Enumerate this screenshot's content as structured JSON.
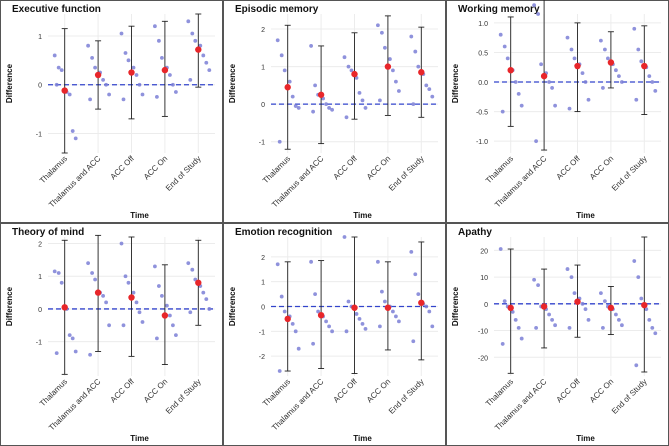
{
  "figure": {
    "categories": [
      "Thalamus",
      "Thalamus and ACC",
      "ACC Off",
      "ACC On",
      "End of Study"
    ],
    "xlabel": "Time",
    "ylabel": "Difference",
    "colors": {
      "points": "#7b7fd6",
      "mean": "#e8262a",
      "errorbar": "#222222",
      "reference": "#3344cc",
      "grid": "#ececec",
      "frame": "#555555"
    }
  },
  "chart_data": [
    {
      "type": "scatter",
      "title": "Executive function",
      "ylim": [
        -1.4,
        1.45
      ],
      "yticks": [
        -1,
        0,
        1
      ],
      "ytick_labels": [
        "-1",
        "0",
        "1"
      ],
      "means": [
        -0.12,
        0.2,
        0.25,
        0.3,
        0.72
      ],
      "err_low": [
        -1.4,
        -0.5,
        -0.7,
        -0.65,
        -0.05
      ],
      "err_high": [
        1.15,
        0.9,
        1.2,
        1.3,
        1.45
      ],
      "points": [
        [
          0.6,
          0.35,
          0.3,
          -0.15,
          -0.2,
          -0.95,
          -1.1,
          0.0
        ],
        [
          0.8,
          0.55,
          0.35,
          0.25,
          0.1,
          0.0,
          -0.2,
          -0.3
        ],
        [
          1.05,
          0.65,
          0.5,
          0.35,
          0.2,
          0.0,
          -0.2,
          -0.3
        ],
        [
          1.2,
          0.9,
          0.55,
          0.35,
          0.2,
          0.0,
          -0.15,
          -0.25
        ],
        [
          1.3,
          1.05,
          0.9,
          0.8,
          0.6,
          0.45,
          0.3,
          0.1
        ]
      ]
    },
    {
      "type": "scatter",
      "title": "Episodic memory",
      "ylim": [
        -1.3,
        2.4
      ],
      "yticks": [
        -1,
        0,
        1,
        2
      ],
      "ytick_labels": [
        "-1",
        "0",
        "1",
        "2"
      ],
      "means": [
        0.45,
        0.25,
        0.8,
        1.0,
        0.85
      ],
      "err_low": [
        -1.2,
        -1.05,
        -0.4,
        -0.3,
        -0.35
      ],
      "err_high": [
        2.1,
        1.55,
        1.9,
        2.35,
        2.05
      ],
      "points": [
        [
          1.7,
          1.3,
          0.9,
          0.6,
          0.2,
          -0.05,
          -0.1,
          -1.0
        ],
        [
          1.55,
          0.5,
          0.25,
          0.15,
          0.0,
          -0.1,
          -0.15,
          -0.2
        ],
        [
          1.25,
          1.0,
          0.9,
          0.7,
          0.3,
          0.1,
          -0.1,
          -0.35
        ],
        [
          2.1,
          1.9,
          1.5,
          1.2,
          0.9,
          0.6,
          0.35,
          0.1
        ],
        [
          1.8,
          1.4,
          1.0,
          0.8,
          0.5,
          0.4,
          0.2,
          0.0
        ]
      ]
    },
    {
      "type": "scatter",
      "title": "Working memory",
      "ylim": [
        -1.2,
        1.15
      ],
      "yticks": [
        -1.0,
        -0.5,
        0.0,
        0.5,
        1.0
      ],
      "ytick_labels": [
        "-1.0",
        "-0.5",
        "0.0",
        "0.5",
        "1.0"
      ],
      "means": [
        0.2,
        0.1,
        0.27,
        0.33,
        0.27
      ],
      "err_low": [
        -0.75,
        -1.15,
        -0.5,
        -0.1,
        -0.55
      ],
      "err_high": [
        1.1,
        1.4,
        1.0,
        0.85,
        0.95
      ],
      "points": [
        [
          0.8,
          0.6,
          0.4,
          0.2,
          0.0,
          -0.2,
          -0.4,
          -0.5
        ],
        [
          1.3,
          1.15,
          0.3,
          0.15,
          0.0,
          -0.1,
          -0.4,
          -1.0
        ],
        [
          0.75,
          0.55,
          0.4,
          0.3,
          0.15,
          0.0,
          -0.3,
          -0.45
        ],
        [
          0.7,
          0.55,
          0.4,
          0.3,
          0.2,
          0.1,
          0.0,
          -0.1
        ],
        [
          0.9,
          0.55,
          0.35,
          0.25,
          0.1,
          0.0,
          -0.15,
          -0.3
        ]
      ]
    },
    {
      "type": "scatter",
      "title": "Theory of mind",
      "ylim": [
        -2.05,
        2.2
      ],
      "yticks": [
        -1,
        0,
        1,
        2
      ],
      "ytick_labels": [
        "-1",
        "0",
        "1",
        "2"
      ],
      "means": [
        0.05,
        0.5,
        0.35,
        -0.2,
        0.8
      ],
      "err_low": [
        -2.0,
        -1.3,
        -1.45,
        -1.7,
        -0.5
      ],
      "err_high": [
        2.1,
        2.25,
        2.2,
        1.35,
        2.1
      ],
      "points": [
        [
          1.15,
          1.1,
          0.8,
          0.0,
          -0.8,
          -0.9,
          -1.3,
          -1.35
        ],
        [
          1.4,
          1.1,
          0.9,
          0.5,
          0.4,
          0.2,
          -0.5,
          -1.4
        ],
        [
          2.0,
          1.0,
          0.8,
          0.5,
          0.2,
          -0.1,
          -0.4,
          -0.5
        ],
        [
          1.3,
          0.7,
          0.4,
          0.1,
          -0.2,
          -0.5,
          -0.8,
          -0.9
        ],
        [
          1.4,
          1.2,
          0.9,
          0.7,
          0.5,
          0.3,
          0.0,
          -0.1
        ]
      ]
    },
    {
      "type": "scatter",
      "title": "Emotion recognition",
      "ylim": [
        -2.8,
        2.8
      ],
      "yticks": [
        -2,
        -1,
        0,
        1,
        2
      ],
      "ytick_labels": [
        "-2",
        "-1",
        "0",
        "1",
        "2"
      ],
      "means": [
        -0.5,
        -0.35,
        -0.05,
        -0.05,
        0.15
      ],
      "err_low": [
        -2.6,
        -2.5,
        -2.7,
        -1.75,
        -2.15
      ],
      "err_high": [
        1.8,
        1.85,
        2.8,
        1.8,
        2.6
      ],
      "points": [
        [
          1.7,
          0.4,
          -0.2,
          -0.4,
          -0.7,
          -1.0,
          -1.7,
          -2.6
        ],
        [
          1.8,
          0.5,
          -0.2,
          -0.4,
          -0.6,
          -0.8,
          -1.0,
          -1.5
        ],
        [
          2.8,
          0.2,
          0.0,
          -0.3,
          -0.5,
          -0.7,
          -0.9,
          -1.0
        ],
        [
          1.8,
          0.6,
          0.2,
          0.0,
          -0.2,
          -0.4,
          -0.6,
          -0.8
        ],
        [
          2.2,
          1.3,
          0.5,
          0.1,
          0.0,
          -0.2,
          -0.8,
          -1.4
        ]
      ]
    },
    {
      "type": "scatter",
      "title": "Apathy",
      "ylim": [
        -27,
        25
      ],
      "yticks": [
        -20,
        -10,
        0,
        10,
        20
      ],
      "ytick_labels": [
        "-20",
        "-10",
        "0",
        "10",
        "20"
      ],
      "means": [
        -1.5,
        -1.0,
        0.8,
        -1.5,
        -0.5
      ],
      "err_low": [
        -26.0,
        -16.5,
        -12.5,
        -11.5,
        -25.5
      ],
      "err_high": [
        20.5,
        13.0,
        14.5,
        6.5,
        25.0
      ],
      "points": [
        [
          20.5,
          1.0,
          -1.0,
          -3.0,
          -6.0,
          -9.0,
          -13.0,
          -15.0
        ],
        [
          9.0,
          7.0,
          -1.0,
          -2.0,
          -4.0,
          -6.0,
          -8.0,
          -9.0
        ],
        [
          13.0,
          10.0,
          4.0,
          2.0,
          0.0,
          -2.0,
          -6.0,
          -9.0
        ],
        [
          4.0,
          1.0,
          -1.0,
          -2.0,
          -4.0,
          -6.0,
          -8.0,
          -9.0
        ],
        [
          16.0,
          10.0,
          2.0,
          -2.0,
          -6.0,
          -9.0,
          -11.0,
          -23.0
        ]
      ]
    }
  ]
}
